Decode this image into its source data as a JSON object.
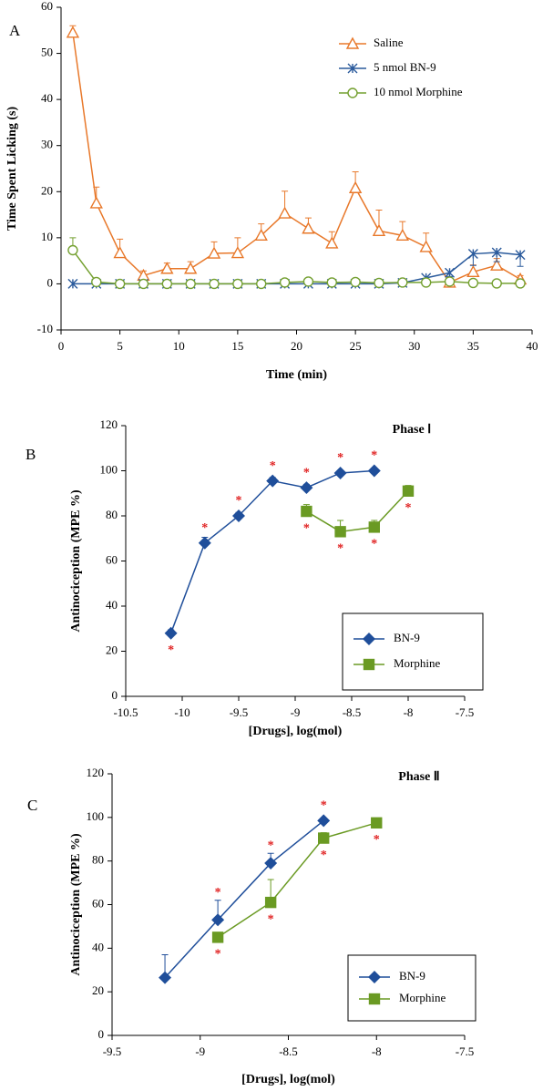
{
  "chart_data": [
    {
      "type": "line",
      "panel": "A",
      "x_label": "Time (min)",
      "y_label": "Time Spent Licking (s)",
      "x": [
        1,
        3,
        5,
        7,
        9,
        11,
        13,
        15,
        17,
        19,
        21,
        23,
        25,
        27,
        29,
        31,
        33,
        35,
        37,
        39
      ],
      "xlim": [
        0,
        40
      ],
      "xticks": [
        0,
        5,
        10,
        15,
        20,
        25,
        30,
        35,
        40
      ],
      "ylim": [
        -10,
        60
      ],
      "yticks": [
        -10,
        0,
        10,
        20,
        30,
        40,
        50,
        60
      ],
      "legend": "upper right",
      "legend_frame": false,
      "series": [
        {
          "name": "Saline",
          "color": "#e8782a",
          "marker": "triangle-open",
          "error_direction": "up",
          "values": [
            54.5,
            17.5,
            6.7,
            1.8,
            3.3,
            3.3,
            6.6,
            6.7,
            10.5,
            15.3,
            12,
            8.8,
            20.8,
            11.5,
            10.5,
            8,
            0.3,
            2.6,
            4,
            1
          ],
          "errors": [
            1.5,
            3.5,
            3,
            1,
            1.2,
            1.5,
            2.5,
            3.3,
            2.5,
            4.8,
            2.3,
            2.5,
            3.5,
            4.5,
            3,
            3,
            0.3,
            1.5,
            1.5,
            0.8
          ]
        },
        {
          "name": "5 nmol BN-9",
          "color": "#2a5a9c",
          "marker": "x-star",
          "error_direction": "down",
          "values": [
            0,
            0,
            0,
            0,
            0,
            0,
            0,
            0,
            0,
            0,
            0,
            0,
            0,
            0,
            0.2,
            1.3,
            2.4,
            6.5,
            6.8,
            6.3
          ],
          "errors": [
            0,
            0,
            0,
            0,
            0,
            0,
            0,
            0,
            0,
            0,
            0,
            0,
            0,
            0,
            0.2,
            0.5,
            0.8,
            2.5,
            2,
            2.5
          ]
        },
        {
          "name": "10 nmol Morphine",
          "color": "#74a030",
          "marker": "circle-open",
          "error_direction": "up",
          "values": [
            7.3,
            0.4,
            0,
            0,
            0,
            0,
            0,
            0,
            0,
            0.3,
            0.5,
            0.3,
            0.4,
            0.2,
            0.3,
            0.3,
            0.5,
            0.2,
            0.1,
            0.1
          ],
          "errors": [
            2.7,
            0.3,
            0,
            0,
            0,
            0,
            0,
            0,
            0,
            0.2,
            0.3,
            0.2,
            0.2,
            0.1,
            0.1,
            0.1,
            0.3,
            0.1,
            0.1,
            0.1
          ]
        }
      ]
    },
    {
      "type": "line",
      "panel": "B",
      "title": "Phase Ⅰ",
      "x_label": "[Drugs], log(mol)",
      "y_label": "Antinociception (MPE %)",
      "xlim": [
        -10.5,
        -7.5
      ],
      "xticks": [
        -10.5,
        -10,
        -9.5,
        -9,
        -8.5,
        -8,
        -7.5
      ],
      "ylim": [
        0,
        120
      ],
      "yticks": [
        0,
        20,
        40,
        60,
        80,
        100,
        120
      ],
      "legend": "lower right",
      "legend_frame": true,
      "series": [
        {
          "name": "BN-9",
          "color": "#1f4e9a",
          "marker": "diamond",
          "error_direction": "up",
          "x": [
            -10.1,
            -9.8,
            -9.5,
            -9.2,
            -8.9,
            -8.6,
            -8.3
          ],
          "values": [
            28,
            68,
            80,
            95.5,
            92.5,
            99,
            100
          ],
          "errors": [
            1.5,
            2.5,
            1.5,
            1.5,
            1.5,
            1,
            0.5
          ],
          "significance": [
            "*",
            "*",
            "*",
            "*",
            "*",
            "*",
            "*"
          ],
          "significance_side": [
            "below",
            "above",
            "above",
            "above",
            "above",
            "above",
            "above"
          ]
        },
        {
          "name": "Morphine",
          "color": "#6a9a23",
          "marker": "square",
          "error_direction": "up",
          "x": [
            -8.9,
            -8.6,
            -8.3,
            -8
          ],
          "values": [
            82,
            73,
            75,
            91
          ],
          "errors": [
            3,
            5,
            3,
            2.5
          ],
          "significance": [
            "*",
            "*",
            "*",
            "*"
          ],
          "significance_side": [
            "below",
            "below",
            "below",
            "below"
          ]
        }
      ]
    },
    {
      "type": "line",
      "panel": "C",
      "title": "Phase Ⅱ",
      "x_label": "[Drugs], log(mol)",
      "y_label": "Antinociception (MPE %)",
      "xlim": [
        -9.5,
        -7.5
      ],
      "xticks": [
        -9.5,
        -9,
        -8.5,
        -8,
        -7.5
      ],
      "ylim": [
        0,
        120
      ],
      "yticks": [
        0,
        20,
        40,
        60,
        80,
        100,
        120
      ],
      "legend": "lower right",
      "legend_frame": true,
      "series": [
        {
          "name": "BN-9",
          "color": "#1f4e9a",
          "marker": "diamond",
          "error_direction": "up",
          "x": [
            -9.2,
            -8.9,
            -8.6,
            -8.3
          ],
          "values": [
            26.5,
            53,
            79,
            98.5
          ],
          "errors": [
            10.5,
            9,
            4.5,
            1
          ],
          "significance": [
            null,
            "*",
            "*",
            "*"
          ],
          "significance_side": [
            null,
            "above",
            "above",
            "above"
          ]
        },
        {
          "name": "Morphine",
          "color": "#6a9a23",
          "marker": "square",
          "error_direction": "up",
          "x": [
            -8.9,
            -8.6,
            -8.3,
            -8
          ],
          "values": [
            45,
            61,
            90.5,
            97.5
          ],
          "errors": [
            2,
            10.5,
            2.5,
            0.5
          ],
          "significance": [
            "*",
            "*",
            "*",
            "*"
          ],
          "significance_side": [
            "below",
            "below",
            "below",
            "below"
          ]
        }
      ]
    }
  ]
}
